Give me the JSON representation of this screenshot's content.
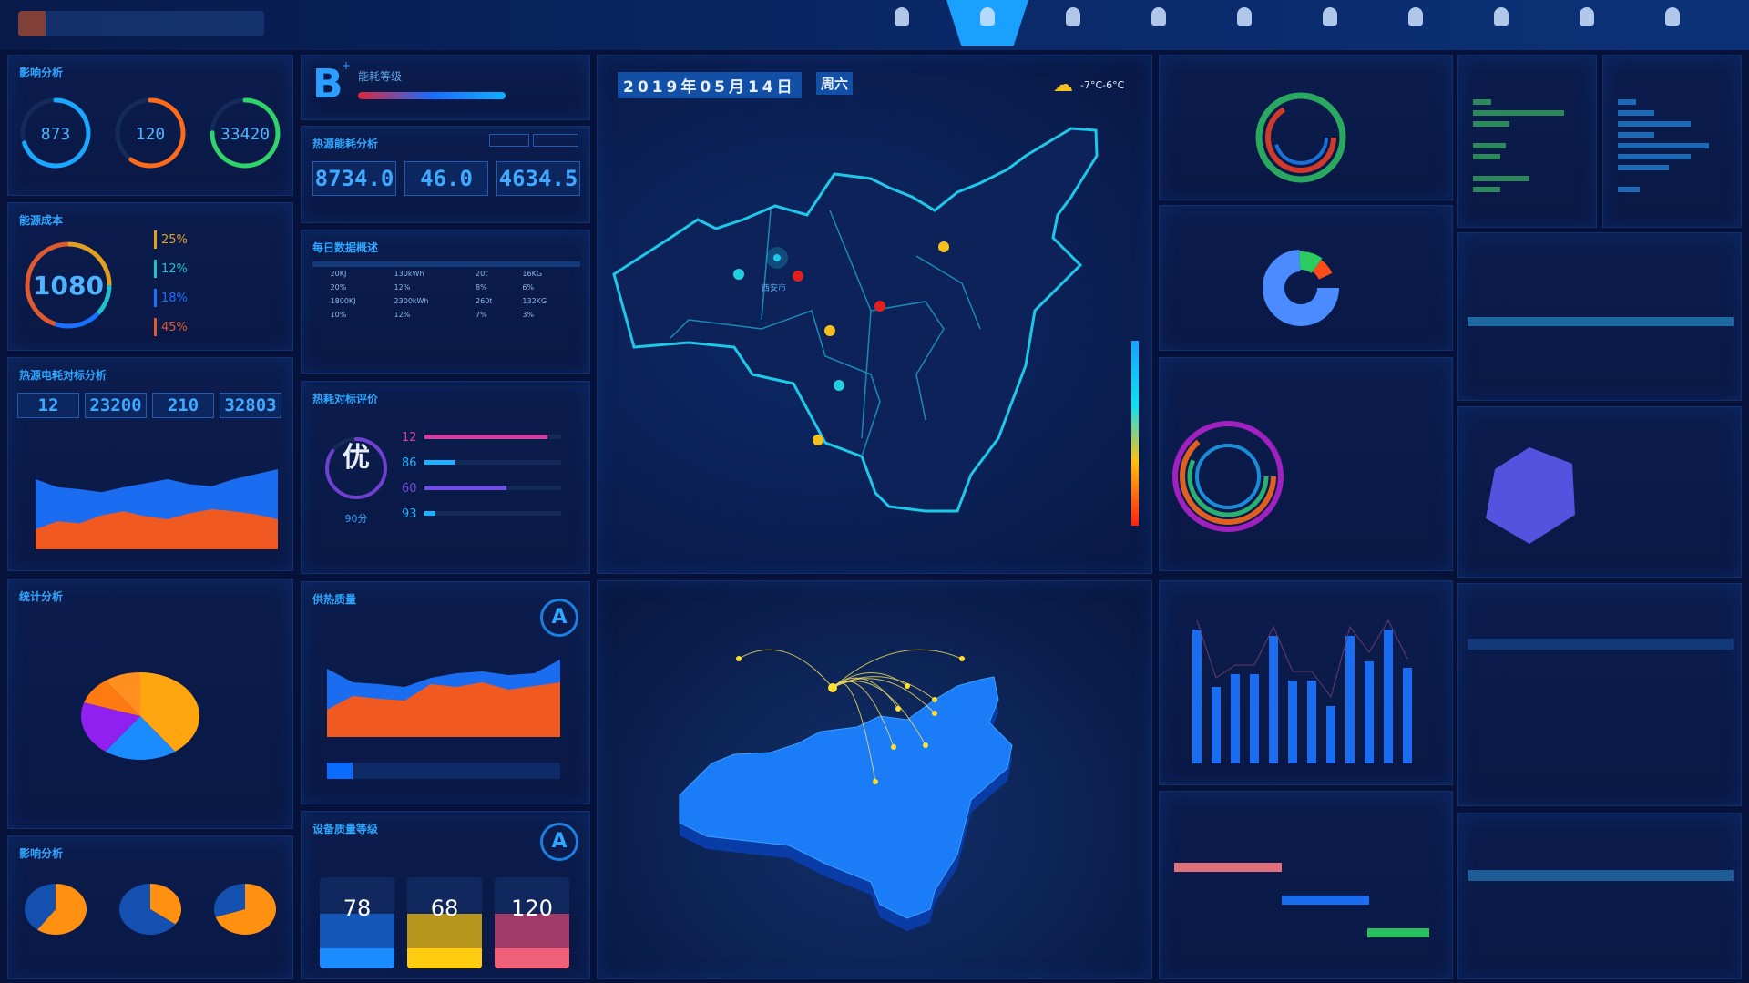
{
  "header": {
    "nav": [
      {
        "icon": "user-icon"
      },
      {
        "icon": "location-icon",
        "active": true
      },
      {
        "icon": "monitor-icon"
      },
      {
        "icon": "chart-icon"
      },
      {
        "icon": "user-icon"
      },
      {
        "icon": "drop-icon"
      },
      {
        "icon": "user-icon"
      },
      {
        "icon": "edit-icon"
      },
      {
        "icon": "user-icon"
      },
      {
        "icon": "gear-icon"
      }
    ]
  },
  "impact": {
    "title": "影响分析",
    "gauges": [
      {
        "value": "873",
        "fraction": 0.7,
        "color": "#1aa8ff"
      },
      {
        "value": "120",
        "fraction": 0.6,
        "color": "#ff6a1a"
      },
      {
        "value": "33420",
        "fraction": 0.75,
        "color": "#2ed36a"
      }
    ]
  },
  "cost": {
    "title": "能源成本",
    "value": "1080",
    "items": [
      {
        "pct": "25%",
        "color": "#e0a020"
      },
      {
        "pct": "12%",
        "color": "#20c0d0"
      },
      {
        "pct": "18%",
        "color": "#1a70ff"
      },
      {
        "pct": "45%",
        "color": "#e05a30"
      }
    ]
  },
  "power": {
    "title": "热源电耗对标分析",
    "stats": [
      "12",
      "23200",
      "210",
      "32803"
    ],
    "series_a": [
      70,
      62,
      60,
      57,
      62,
      66,
      70,
      65,
      63,
      70,
      75,
      80
    ],
    "series_b": [
      20,
      28,
      26,
      34,
      38,
      33,
      30,
      36,
      40,
      38,
      35,
      30
    ]
  },
  "grade": {
    "letter": "B",
    "sup": "+",
    "title": "能耗等级",
    "level": 0.85
  },
  "energy": {
    "title": "热源能耗分析",
    "stats": [
      "8734.0",
      "46.0",
      "4634.5"
    ]
  },
  "daily": {
    "title": "每日数据概述",
    "headers": [
      "",
      "",
      "",
      "",
      ""
    ],
    "rows": [
      [
        "",
        "20KJ",
        "130kWh",
        "20t",
        "16KG"
      ],
      [
        "",
        "20%",
        "12%",
        "8%",
        "6%"
      ],
      [
        "",
        "1800KJ",
        "2300kWh",
        "260t",
        "132KG"
      ],
      [
        "",
        "10%",
        "12%",
        "7%",
        "3%"
      ]
    ]
  },
  "eval": {
    "title": "热耗对标评价",
    "badge": "优",
    "score": "90分",
    "bars": [
      {
        "n": "12",
        "v": 0.9,
        "c": "#d040a0"
      },
      {
        "n": "86",
        "v": 0.22,
        "c": "#20b0ff"
      },
      {
        "n": "60",
        "v": 0.6,
        "c": "#7050e0"
      },
      {
        "n": "93",
        "v": 0.08,
        "c": "#20b0ff"
      }
    ]
  },
  "stats": {
    "title": "统计分析",
    "pie": [
      {
        "v": 40,
        "c": "#ffa510"
      },
      {
        "v": 20,
        "c": "#1a8cff"
      },
      {
        "v": 20,
        "c": "#9020f0"
      },
      {
        "v": 10,
        "c": "#ff7a10"
      },
      {
        "v": 10,
        "c": "#ff9020"
      }
    ]
  },
  "quality": {
    "title": "供热质量",
    "rank": "A",
    "series_a": [
      75,
      60,
      58,
      55,
      65,
      70,
      72,
      68,
      70,
      85
    ],
    "series_b": [
      30,
      45,
      42,
      40,
      58,
      55,
      60,
      52,
      56,
      60
    ]
  },
  "impact2": {
    "title": "影响分析",
    "pies": [
      0.6,
      0.35,
      0.7
    ]
  },
  "device": {
    "title": "设备质量等级",
    "rank": "A",
    "cards": [
      {
        "value": "78",
        "color": "#1a8cff",
        "top": "#1457b8"
      },
      {
        "value": "68",
        "color": "#ffcc10",
        "top": "#b8961e"
      },
      {
        "value": "120",
        "color": "#f06078",
        "top": "#a03a66"
      }
    ]
  },
  "map": {
    "date": "2019年05月14日",
    "weekday": "周六",
    "weather": "-7°C-6°C",
    "cities": [
      "西安市"
    ]
  },
  "bars": {
    "values": [
      42,
      24,
      28,
      28,
      40,
      26,
      26,
      18,
      40,
      32,
      42,
      30
    ]
  }
}
